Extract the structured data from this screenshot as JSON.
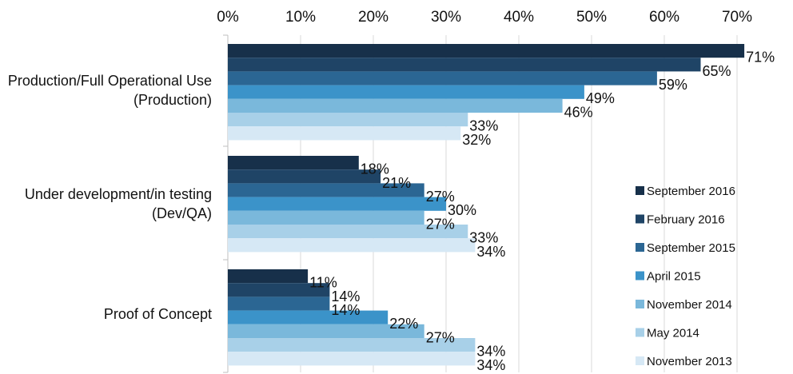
{
  "chart_data": {
    "type": "bar",
    "orientation": "horizontal",
    "x_ticks": [
      "0%",
      "10%",
      "20%",
      "30%",
      "40%",
      "50%",
      "60%",
      "70%"
    ],
    "xlim": [
      0,
      72
    ],
    "x_axis_position": "top",
    "grid": true,
    "legend_position": "right",
    "categories": [
      [
        "Production/Full Operational Use",
        "(Production)"
      ],
      [
        "Under development/in testing",
        "(Dev/QA)"
      ],
      [
        "Proof of Concept"
      ]
    ],
    "series": [
      {
        "name": "September 2016",
        "color": "#17304a",
        "values": [
          71,
          18,
          11
        ],
        "labels": [
          "71%",
          "18%",
          "11%"
        ]
      },
      {
        "name": "February 2016",
        "color": "#1f4466",
        "values": [
          65,
          21,
          14
        ],
        "labels": [
          "65%",
          "21%",
          "14%"
        ]
      },
      {
        "name": "September 2015",
        "color": "#2b6693",
        "values": [
          59,
          27,
          14
        ],
        "labels": [
          "59%",
          "27%",
          "14%"
        ]
      },
      {
        "name": "April 2015",
        "color": "#3b93c9",
        "values": [
          49,
          30,
          22
        ],
        "labels": [
          "49%",
          "30%",
          "22%"
        ]
      },
      {
        "name": "November 2014",
        "color": "#7ab8db",
        "values": [
          46,
          27,
          27
        ],
        "labels": [
          "46%",
          "27%",
          "27%"
        ]
      },
      {
        "name": "May 2014",
        "color": "#a8d0e8",
        "values": [
          33,
          33,
          34
        ],
        "labels": [
          "33%",
          "33%",
          "34%"
        ]
      },
      {
        "name": "November 2013",
        "color": "#d6e8f5",
        "values": [
          32,
          34,
          34
        ],
        "labels": [
          "32%",
          "34%",
          "34%"
        ]
      }
    ]
  }
}
